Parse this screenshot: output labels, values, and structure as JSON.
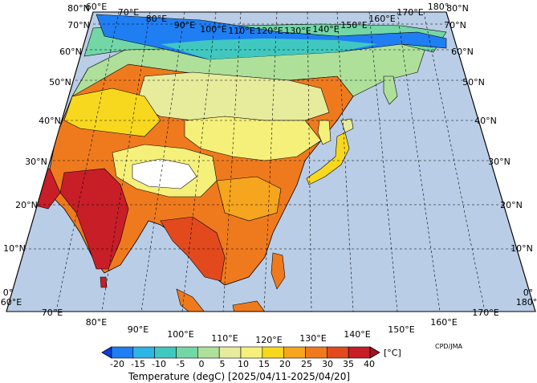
{
  "map": {
    "lon_labels_top": [
      "60°E",
      "70°E",
      "80°E",
      "90°E",
      "100°E",
      "110°E",
      "120°E",
      "130°E",
      "140°E",
      "150°E",
      "160°E",
      "170°E",
      "180°"
    ],
    "lon_labels_bottom": [
      "60°E",
      "70°E",
      "80°E",
      "90°E",
      "100°E",
      "110°E",
      "120°E",
      "130°E",
      "140°E",
      "150°E",
      "160°E",
      "170°E",
      "180°"
    ],
    "lat_labels_left": [
      "80°N",
      "70°N",
      "60°N",
      "50°N",
      "40°N",
      "30°N",
      "20°N",
      "10°N",
      "0°"
    ],
    "lat_labels_right": [
      "80°N",
      "70°N",
      "60°N",
      "50°N",
      "40°N",
      "30°N",
      "20°N",
      "10°N",
      "0°"
    ],
    "colors": {
      "ocean": "#b9cde6",
      "land_outline": "#000000",
      "grid": "#000000"
    }
  },
  "colorbar": {
    "tick_labels": [
      "-20",
      "-15",
      "-10",
      "-5",
      "0",
      "5",
      "10",
      "15",
      "20",
      "25",
      "30",
      "35",
      "40"
    ],
    "unit": "[°C]",
    "title": "Temperature (degC) [2025/04/11-2025/04/20]",
    "colors": [
      "#0a3fd8",
      "#1f7ef2",
      "#2fb4e6",
      "#40c8c0",
      "#73d6a6",
      "#aee09a",
      "#e6ec9c",
      "#f5f07a",
      "#f7d81e",
      "#f5a51e",
      "#ef7a1e",
      "#e24a1e",
      "#c81e28",
      "#a8101e"
    ]
  },
  "credit": "CPD/JMA"
}
